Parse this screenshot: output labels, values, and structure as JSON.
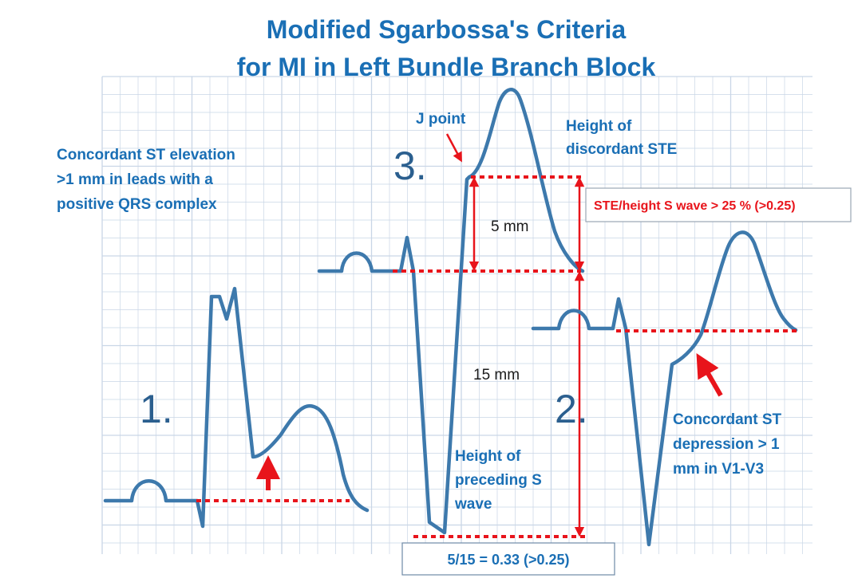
{
  "title": {
    "line1": "Modified Sgarbossa's Criteria",
    "line2": "for MI in Left Bundle Branch Block"
  },
  "criterion1": {
    "number": "1.",
    "description_lines": [
      "Concordant ST elevation",
      ">1 mm in leads with a",
      "positive QRS complex"
    ]
  },
  "criterion2": {
    "number": "2.",
    "description_lines": [
      "Concordant ST",
      "depression > 1",
      "mm in V1-V3"
    ]
  },
  "criterion3": {
    "number": "3.",
    "j_point_label": "J point",
    "ste_height_lines": [
      "Height of",
      "discordant STE"
    ],
    "s_height_lines": [
      "Height of",
      "preceding S",
      "wave"
    ],
    "ste_measure": "5 mm",
    "s_measure": "15 mm",
    "ratio_rule": "STE/height S wave > 25 % (>0.25)",
    "ratio_result": "5/15 =  0.33 (>0.25)"
  },
  "colors": {
    "title_blue": "#1a6fb5",
    "wave_blue": "#3d79ac",
    "marker_red": "#e8141b",
    "grid": "#c9d6e6"
  }
}
